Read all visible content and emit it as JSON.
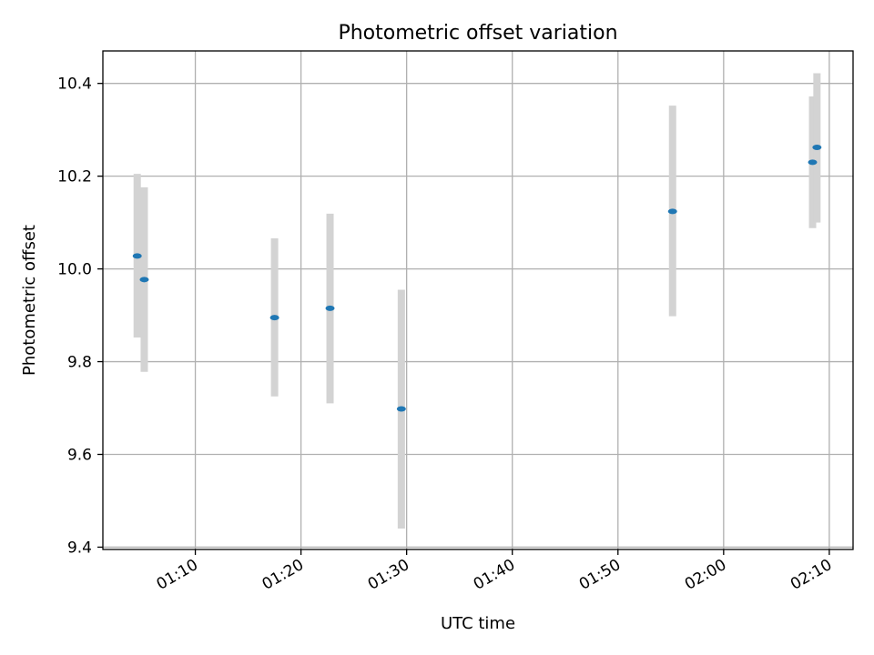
{
  "chart_data": {
    "type": "scatter",
    "title": "Photometric offset variation",
    "xlabel": "UTC time",
    "ylabel": "Photometric offset",
    "x_axis": {
      "kind": "time",
      "min": "01:01:15",
      "max": "02:12:15"
    },
    "ylim": [
      9.395,
      10.47
    ],
    "x_ticks": [
      "01:10",
      "01:20",
      "01:30",
      "01:40",
      "01:50",
      "02:00",
      "02:10"
    ],
    "y_ticks": [
      9.4,
      9.6,
      9.8,
      10.0,
      10.2,
      10.4
    ],
    "y_tick_labels": [
      "9.4",
      "9.6",
      "9.8",
      "10.0",
      "10.2",
      "10.4"
    ],
    "grid": true,
    "colors": {
      "marker": "#1f77b4",
      "error_bar": "#d3d3d3",
      "grid": "#b0b0b0"
    },
    "points": [
      {
        "time": "01:04:30",
        "value": 10.028,
        "lower": 9.852,
        "upper": 10.205
      },
      {
        "time": "01:05:10",
        "value": 9.977,
        "lower": 9.778,
        "upper": 10.176
      },
      {
        "time": "01:17:30",
        "value": 9.895,
        "lower": 9.725,
        "upper": 10.066
      },
      {
        "time": "01:22:45",
        "value": 9.915,
        "lower": 9.71,
        "upper": 10.119
      },
      {
        "time": "01:29:30",
        "value": 9.698,
        "lower": 9.44,
        "upper": 9.955
      },
      {
        "time": "01:55:10",
        "value": 10.124,
        "lower": 9.898,
        "upper": 10.352
      },
      {
        "time": "02:08:25",
        "value": 10.23,
        "lower": 10.088,
        "upper": 10.372
      },
      {
        "time": "02:08:50",
        "value": 10.262,
        "lower": 10.1,
        "upper": 10.422
      }
    ]
  }
}
